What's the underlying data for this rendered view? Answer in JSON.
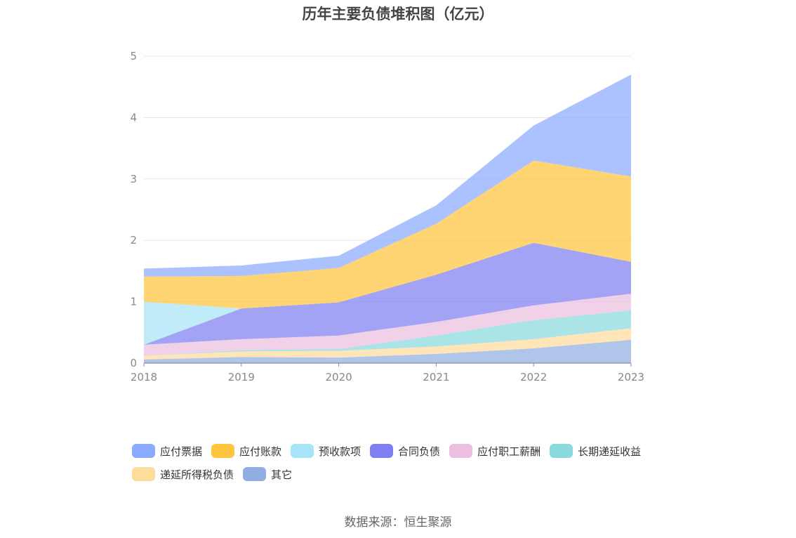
{
  "chart_data": {
    "type": "area",
    "stacked": true,
    "title": "历年主要负债堆积图（亿元）",
    "x": [
      "2018",
      "2019",
      "2020",
      "2021",
      "2022",
      "2023"
    ],
    "ylim": [
      0,
      5
    ],
    "yticks": [
      "0",
      "1",
      "2",
      "3",
      "4",
      "5"
    ],
    "grid": true,
    "legend_position": "bottom",
    "series": [
      {
        "name": "其它",
        "color": "#90aee0",
        "values": [
          0.06,
          0.1,
          0.09,
          0.15,
          0.24,
          0.38
        ]
      },
      {
        "name": "递延所得税负债",
        "color": "#ffdb9c",
        "values": [
          0.06,
          0.09,
          0.11,
          0.12,
          0.15,
          0.19
        ]
      },
      {
        "name": "长期递延收益",
        "color": "#8ad9dc",
        "values": [
          0.0,
          0.02,
          0.03,
          0.18,
          0.31,
          0.29
        ]
      },
      {
        "name": "应付职工薪酬",
        "color": "#ecbfdf",
        "values": [
          0.18,
          0.18,
          0.22,
          0.22,
          0.24,
          0.27
        ]
      },
      {
        "name": "合同负债",
        "color": "#7f7ff2",
        "values": [
          0.0,
          0.5,
          0.54,
          0.77,
          1.02,
          0.52
        ]
      },
      {
        "name": "预收款项",
        "color": "#a8e4f8",
        "values": [
          0.7,
          0.0,
          0.0,
          0.0,
          0.0,
          0.0
        ]
      },
      {
        "name": "应付账款",
        "color": "#ffc53e",
        "values": [
          0.41,
          0.53,
          0.56,
          0.83,
          1.34,
          1.39
        ]
      },
      {
        "name": "应付票据",
        "color": "#8aaaff",
        "values": [
          0.13,
          0.17,
          0.2,
          0.3,
          0.57,
          1.66
        ]
      }
    ],
    "legend_order": [
      "应付票据",
      "应付账款",
      "预收款项",
      "合同负债",
      "应付职工薪酬",
      "长期递延收益",
      "递延所得税负债",
      "其它"
    ]
  },
  "footer": {
    "source": "数据来源：恒生聚源"
  }
}
